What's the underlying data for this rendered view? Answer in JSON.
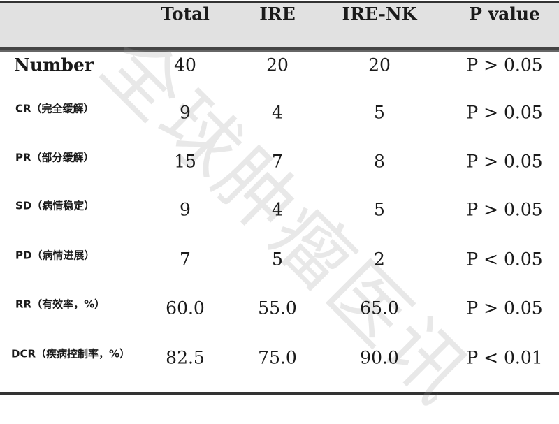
{
  "watermark": "全球肿瘤医讯",
  "table": {
    "headers": [
      "",
      "Total",
      "IRE",
      "IRE-NK",
      "P value"
    ],
    "rows": [
      {
        "label": "Number",
        "values": [
          "40",
          "20",
          "20",
          "P > 0.05"
        ]
      },
      {
        "label": "CR（完全缓解）",
        "values": [
          "9",
          "4",
          "5",
          "P > 0.05"
        ]
      },
      {
        "label": "PR（部分缓解）",
        "values": [
          "15",
          "7",
          "8",
          "P > 0.05"
        ]
      },
      {
        "label": "SD（病情稳定）",
        "values": [
          "9",
          "4",
          "5",
          "P > 0.05"
        ]
      },
      {
        "label": "PD（病情进展）",
        "values": [
          "7",
          "5",
          "2",
          "P < 0.05"
        ]
      },
      {
        "label": "RR（有效率，%）",
        "values": [
          "60.0",
          "55.0",
          "65.0",
          "P > 0.05"
        ]
      },
      {
        "label": "DCR（疾病控制率，%）",
        "values": [
          "82.5",
          "75.0",
          "90.0",
          "P < 0.01"
        ]
      }
    ]
  }
}
